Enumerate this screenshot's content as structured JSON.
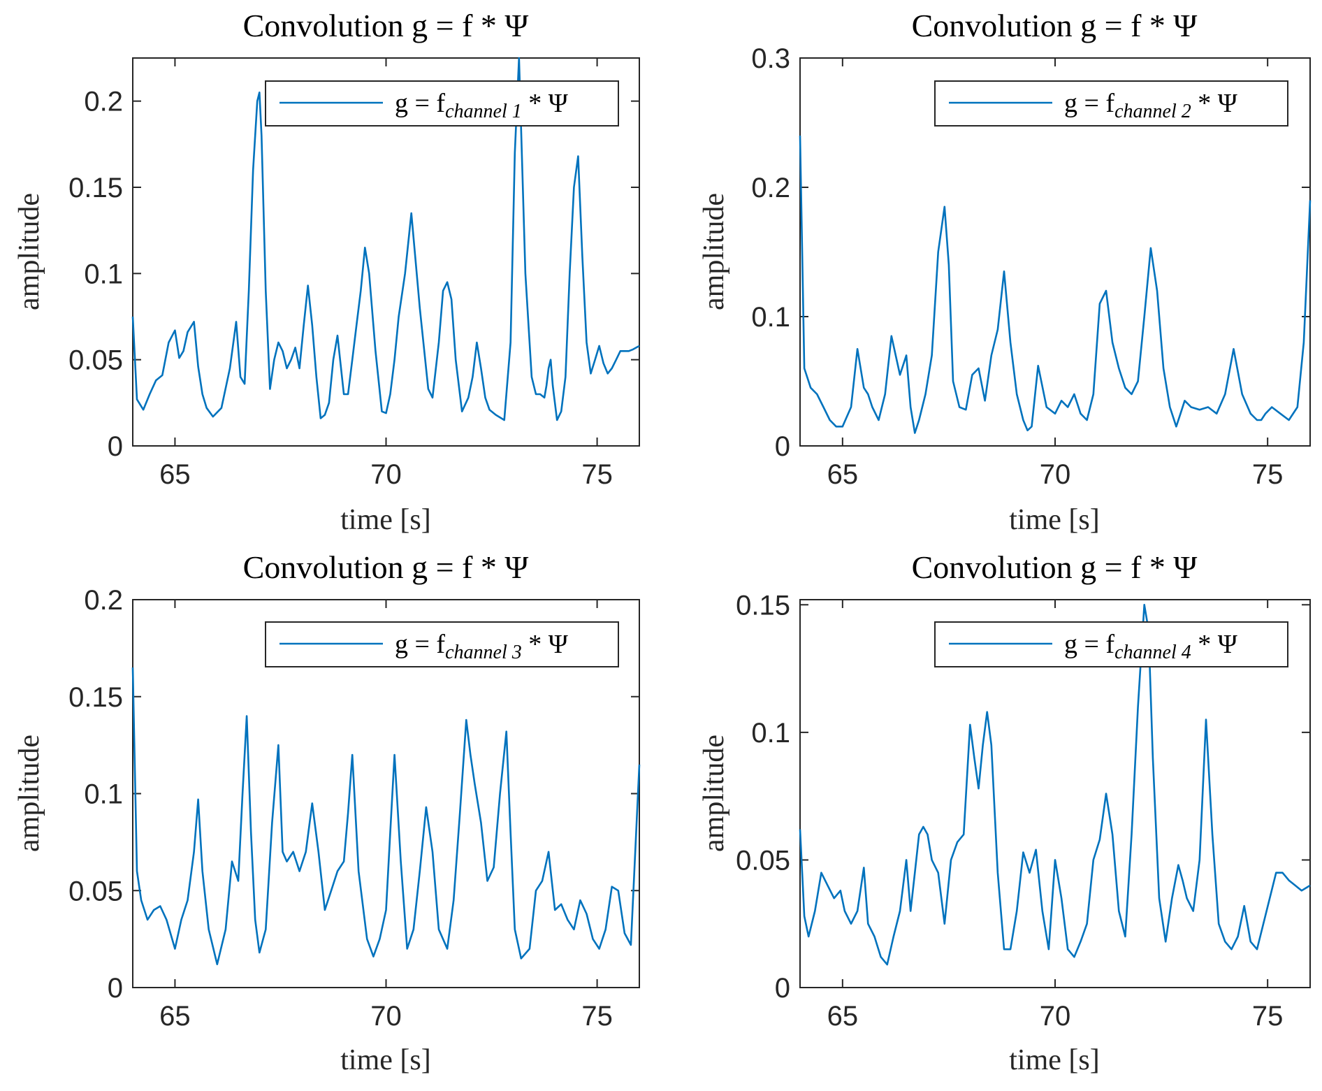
{
  "figure": {
    "title": "Convolution g = f * Ψ"
  },
  "chart_data": [
    {
      "type": "line",
      "title": "Convolution g = f * Ψ",
      "xlabel": "time [s]",
      "ylabel": "amplitude",
      "xlim": [
        64,
        76
      ],
      "ylim": [
        0,
        0.225
      ],
      "xticks": [
        65,
        70,
        75
      ],
      "yticks": [
        0,
        0.05,
        0.1,
        0.15,
        0.2
      ],
      "ytick_labels": [
        "0",
        "0.05",
        "0.1",
        "0.15",
        "0.2"
      ],
      "legend": {
        "prefix": "g = f",
        "subscript": "channel 1",
        "suffix": " * Ψ",
        "placement": "top-right"
      },
      "color": "#0072BD",
      "series": [
        {
          "name": "g = f channel 1 * Ψ",
          "x": [
            64.0,
            64.1,
            64.25,
            64.4,
            64.55,
            64.7,
            64.85,
            65.0,
            65.1,
            65.2,
            65.3,
            65.45,
            65.55,
            65.65,
            65.75,
            65.9,
            66.1,
            66.3,
            66.45,
            66.55,
            66.65,
            66.75,
            66.85,
            66.95,
            67.0,
            67.05,
            67.15,
            67.25,
            67.35,
            67.45,
            67.55,
            67.65,
            67.75,
            67.85,
            67.95,
            68.05,
            68.15,
            68.25,
            68.35,
            68.45,
            68.55,
            68.65,
            68.75,
            68.85,
            69.0,
            69.1,
            69.2,
            69.3,
            69.4,
            69.5,
            69.6,
            69.75,
            69.9,
            70.0,
            70.1,
            70.2,
            70.3,
            70.45,
            70.6,
            70.8,
            71.0,
            71.1,
            71.25,
            71.35,
            71.45,
            71.55,
            71.65,
            71.8,
            71.95,
            72.05,
            72.15,
            72.25,
            72.35,
            72.45,
            72.6,
            72.8,
            72.95,
            73.05,
            73.15,
            73.3,
            73.45,
            73.55,
            73.65,
            73.75,
            73.8,
            73.85,
            73.9,
            73.95,
            74.05,
            74.15,
            74.25,
            74.35,
            74.45,
            74.55,
            74.65,
            74.75,
            74.85,
            74.95,
            75.05,
            75.15,
            75.25,
            75.35,
            75.45,
            75.55,
            75.65,
            75.75,
            75.85,
            76.0
          ],
          "y": [
            0.075,
            0.027,
            0.021,
            0.03,
            0.038,
            0.041,
            0.06,
            0.067,
            0.051,
            0.055,
            0.066,
            0.072,
            0.046,
            0.03,
            0.022,
            0.017,
            0.022,
            0.045,
            0.072,
            0.04,
            0.036,
            0.09,
            0.16,
            0.2,
            0.205,
            0.18,
            0.09,
            0.033,
            0.05,
            0.06,
            0.055,
            0.045,
            0.05,
            0.057,
            0.045,
            0.07,
            0.093,
            0.07,
            0.04,
            0.016,
            0.018,
            0.025,
            0.05,
            0.064,
            0.03,
            0.03,
            0.05,
            0.07,
            0.09,
            0.115,
            0.1,
            0.055,
            0.02,
            0.019,
            0.03,
            0.05,
            0.075,
            0.1,
            0.135,
            0.08,
            0.033,
            0.028,
            0.06,
            0.09,
            0.095,
            0.085,
            0.05,
            0.02,
            0.028,
            0.04,
            0.06,
            0.045,
            0.028,
            0.021,
            0.018,
            0.015,
            0.06,
            0.17,
            0.225,
            0.1,
            0.04,
            0.03,
            0.03,
            0.028,
            0.035,
            0.045,
            0.05,
            0.035,
            0.015,
            0.02,
            0.04,
            0.1,
            0.15,
            0.168,
            0.11,
            0.06,
            0.042,
            0.05,
            0.058,
            0.048,
            0.042,
            0.045,
            0.05,
            0.055,
            0.055,
            0.055,
            0.056,
            0.058
          ]
        }
      ]
    },
    {
      "type": "line",
      "title": "Convolution g = f * Ψ",
      "xlabel": "time [s]",
      "ylabel": "amplitude",
      "xlim": [
        64,
        76
      ],
      "ylim": [
        0,
        0.3
      ],
      "xticks": [
        65,
        70,
        75
      ],
      "yticks": [
        0,
        0.1,
        0.2,
        0.3
      ],
      "ytick_labels": [
        "0",
        "0.1",
        "0.2",
        "0.3"
      ],
      "legend": {
        "prefix": "g = f",
        "subscript": "channel 2",
        "suffix": " * Ψ",
        "placement": "top-right"
      },
      "color": "#0072BD",
      "series": [
        {
          "name": "g = f channel 2 * Ψ",
          "x": [
            64.0,
            64.1,
            64.25,
            64.4,
            64.55,
            64.7,
            64.85,
            65.0,
            65.2,
            65.35,
            65.5,
            65.6,
            65.7,
            65.85,
            66.0,
            66.15,
            66.35,
            66.5,
            66.6,
            66.7,
            66.8,
            66.95,
            67.1,
            67.25,
            67.4,
            67.5,
            67.6,
            67.75,
            67.9,
            68.05,
            68.2,
            68.35,
            68.5,
            68.65,
            68.8,
            68.95,
            69.1,
            69.25,
            69.35,
            69.45,
            69.6,
            69.8,
            70.0,
            70.15,
            70.3,
            70.45,
            70.6,
            70.75,
            70.9,
            71.05,
            71.2,
            71.35,
            71.5,
            71.65,
            71.8,
            71.95,
            72.1,
            72.25,
            72.4,
            72.55,
            72.7,
            72.85,
            72.95,
            73.05,
            73.2,
            73.4,
            73.6,
            73.8,
            74.0,
            74.2,
            74.4,
            74.6,
            74.75,
            74.85,
            74.95,
            75.1,
            75.3,
            75.5,
            75.7,
            75.85,
            76.0
          ],
          "y": [
            0.24,
            0.06,
            0.045,
            0.04,
            0.03,
            0.02,
            0.015,
            0.015,
            0.03,
            0.075,
            0.045,
            0.04,
            0.03,
            0.02,
            0.04,
            0.085,
            0.055,
            0.07,
            0.03,
            0.01,
            0.02,
            0.04,
            0.07,
            0.15,
            0.185,
            0.14,
            0.05,
            0.03,
            0.028,
            0.055,
            0.06,
            0.035,
            0.07,
            0.09,
            0.135,
            0.08,
            0.04,
            0.02,
            0.012,
            0.015,
            0.062,
            0.03,
            0.025,
            0.035,
            0.03,
            0.04,
            0.025,
            0.02,
            0.04,
            0.11,
            0.12,
            0.08,
            0.06,
            0.045,
            0.04,
            0.05,
            0.1,
            0.153,
            0.12,
            0.06,
            0.03,
            0.015,
            0.025,
            0.035,
            0.03,
            0.028,
            0.03,
            0.025,
            0.04,
            0.075,
            0.04,
            0.025,
            0.02,
            0.02,
            0.025,
            0.03,
            0.025,
            0.02,
            0.03,
            0.08,
            0.19
          ]
        }
      ]
    },
    {
      "type": "line",
      "title": "Convolution g = f * Ψ",
      "xlabel": "time [s]",
      "ylabel": "amplitude",
      "xlim": [
        64,
        76
      ],
      "ylim": [
        0,
        0.2
      ],
      "xticks": [
        65,
        70,
        75
      ],
      "yticks": [
        0,
        0.05,
        0.1,
        0.15,
        0.2
      ],
      "ytick_labels": [
        "0",
        "0.05",
        "0.1",
        "0.15",
        "0.2"
      ],
      "legend": {
        "prefix": "g = f",
        "subscript": "channel 3",
        "suffix": " * Ψ",
        "placement": "top-right"
      },
      "color": "#0072BD",
      "series": [
        {
          "name": "g = f channel 3 * Ψ",
          "x": [
            64.0,
            64.1,
            64.2,
            64.35,
            64.5,
            64.65,
            64.8,
            65.0,
            65.15,
            65.3,
            65.45,
            65.55,
            65.65,
            65.8,
            66.0,
            66.2,
            66.35,
            66.5,
            66.6,
            66.7,
            66.8,
            66.9,
            67.0,
            67.15,
            67.3,
            67.45,
            67.55,
            67.65,
            67.8,
            67.95,
            68.1,
            68.25,
            68.4,
            68.55,
            68.7,
            68.85,
            69.0,
            69.1,
            69.2,
            69.35,
            69.55,
            69.7,
            69.85,
            70.0,
            70.1,
            70.2,
            70.35,
            70.5,
            70.65,
            70.8,
            70.95,
            71.1,
            71.25,
            71.45,
            71.6,
            71.75,
            71.9,
            72.0,
            72.1,
            72.25,
            72.4,
            72.55,
            72.7,
            72.85,
            72.95,
            73.05,
            73.2,
            73.4,
            73.55,
            73.7,
            73.85,
            74.0,
            74.15,
            74.3,
            74.45,
            74.6,
            74.75,
            74.9,
            75.05,
            75.2,
            75.35,
            75.5,
            75.65,
            75.8,
            76.0
          ],
          "y": [
            0.165,
            0.06,
            0.045,
            0.035,
            0.04,
            0.042,
            0.035,
            0.02,
            0.035,
            0.045,
            0.07,
            0.097,
            0.06,
            0.03,
            0.012,
            0.03,
            0.065,
            0.055,
            0.1,
            0.14,
            0.08,
            0.035,
            0.018,
            0.03,
            0.085,
            0.125,
            0.07,
            0.065,
            0.07,
            0.06,
            0.07,
            0.095,
            0.07,
            0.04,
            0.05,
            0.06,
            0.065,
            0.09,
            0.12,
            0.06,
            0.025,
            0.016,
            0.025,
            0.04,
            0.08,
            0.12,
            0.065,
            0.02,
            0.03,
            0.06,
            0.093,
            0.07,
            0.03,
            0.02,
            0.045,
            0.09,
            0.138,
            0.12,
            0.105,
            0.085,
            0.055,
            0.062,
            0.1,
            0.132,
            0.08,
            0.03,
            0.015,
            0.02,
            0.05,
            0.055,
            0.07,
            0.04,
            0.043,
            0.035,
            0.03,
            0.045,
            0.038,
            0.025,
            0.02,
            0.03,
            0.052,
            0.05,
            0.028,
            0.022,
            0.115
          ]
        }
      ]
    },
    {
      "type": "line",
      "title": "Convolution g = f * Ψ",
      "xlabel": "time [s]",
      "ylabel": "amplitude",
      "xlim": [
        64,
        76
      ],
      "ylim": [
        0,
        0.152
      ],
      "xticks": [
        65,
        70,
        75
      ],
      "yticks": [
        0,
        0.05,
        0.1,
        0.15
      ],
      "ytick_labels": [
        "0",
        "0.05",
        "0.1",
        "0.15"
      ],
      "legend": {
        "prefix": "g = f",
        "subscript": "channel 4",
        "suffix": " * Ψ",
        "placement": "top-right"
      },
      "color": "#0072BD",
      "series": [
        {
          "name": "g = f channel 4 * Ψ",
          "x": [
            64.0,
            64.1,
            64.2,
            64.35,
            64.5,
            64.65,
            64.8,
            64.95,
            65.05,
            65.2,
            65.35,
            65.5,
            65.6,
            65.75,
            65.9,
            66.05,
            66.2,
            66.35,
            66.5,
            66.6,
            66.7,
            66.8,
            66.9,
            67.0,
            67.1,
            67.25,
            67.4,
            67.55,
            67.7,
            67.85,
            68.0,
            68.1,
            68.2,
            68.3,
            68.4,
            68.5,
            68.65,
            68.8,
            68.95,
            69.1,
            69.25,
            69.4,
            69.55,
            69.7,
            69.85,
            70.0,
            70.15,
            70.3,
            70.45,
            70.6,
            70.75,
            70.9,
            71.05,
            71.2,
            71.35,
            71.5,
            71.65,
            71.8,
            71.95,
            72.1,
            72.2,
            72.3,
            72.45,
            72.6,
            72.75,
            72.9,
            73.0,
            73.1,
            73.25,
            73.4,
            73.55,
            73.7,
            73.85,
            74.0,
            74.15,
            74.3,
            74.45,
            74.6,
            74.75,
            74.9,
            75.05,
            75.2,
            75.35,
            75.5,
            75.65,
            75.8,
            76.0
          ],
          "y": [
            0.062,
            0.028,
            0.02,
            0.03,
            0.045,
            0.04,
            0.035,
            0.038,
            0.03,
            0.025,
            0.03,
            0.047,
            0.025,
            0.02,
            0.012,
            0.009,
            0.02,
            0.03,
            0.05,
            0.03,
            0.045,
            0.06,
            0.063,
            0.06,
            0.05,
            0.045,
            0.025,
            0.05,
            0.057,
            0.06,
            0.103,
            0.09,
            0.078,
            0.095,
            0.108,
            0.095,
            0.045,
            0.015,
            0.015,
            0.03,
            0.053,
            0.045,
            0.054,
            0.03,
            0.015,
            0.05,
            0.035,
            0.015,
            0.012,
            0.018,
            0.025,
            0.05,
            0.058,
            0.076,
            0.06,
            0.03,
            0.02,
            0.06,
            0.11,
            0.15,
            0.14,
            0.09,
            0.035,
            0.018,
            0.035,
            0.048,
            0.042,
            0.035,
            0.03,
            0.05,
            0.105,
            0.06,
            0.025,
            0.018,
            0.015,
            0.02,
            0.032,
            0.018,
            0.015,
            0.025,
            0.035,
            0.045,
            0.045,
            0.042,
            0.04,
            0.038,
            0.04
          ]
        }
      ]
    }
  ]
}
